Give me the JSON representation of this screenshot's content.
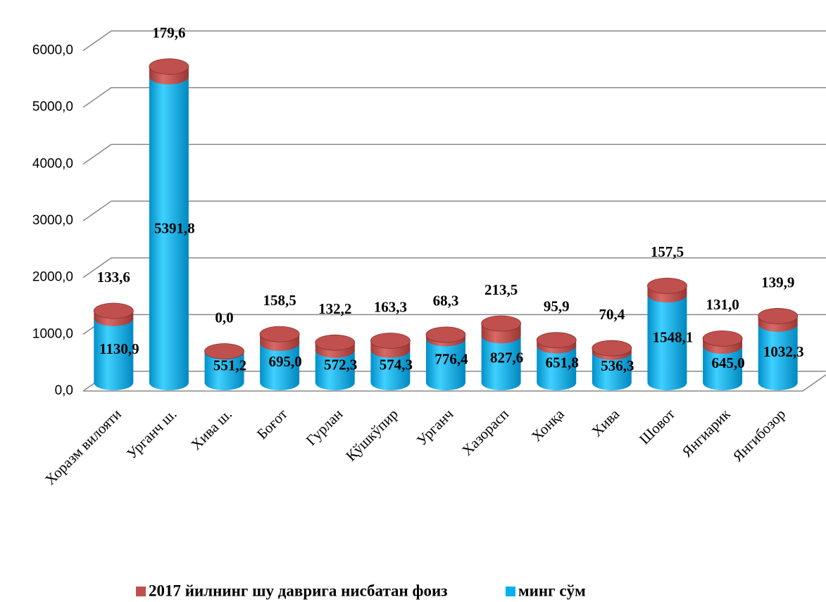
{
  "chart_data": {
    "type": "bar3d_stacked",
    "categories": [
      "Хоразм вилояти",
      "Урганч ш.",
      "Хива ш.",
      "Боғот",
      "Гурлан",
      "Қўшкўпир",
      "Урганч",
      "Хазорасп",
      "Хонқа",
      "Хива",
      "Шовот",
      "Янгиарик",
      "Янгибозор"
    ],
    "series": [
      {
        "name": "минг сўм",
        "color": "#00b0f0",
        "values": [
          1130.9,
          5391.8,
          551.2,
          695.0,
          572.3,
          574.3,
          776.4,
          827.6,
          651.8,
          536.3,
          1548.1,
          645.0,
          1032.3
        ],
        "value_labels": [
          "1130,9",
          "5391,8",
          "551,2",
          "695,0",
          "572,3",
          "574,3",
          "776,4",
          "827,6",
          "651,8",
          "536,3",
          "1548,1",
          "645,0",
          "1032,3"
        ]
      },
      {
        "name": "2017 йилнинг шу даврига нисбатан фоиз",
        "color": "#c0504d",
        "values": [
          133.6,
          179.6,
          0.0,
          158.5,
          132.2,
          163.3,
          68.3,
          213.5,
          95.9,
          70.4,
          157.5,
          131.0,
          139.9
        ],
        "value_labels": [
          "133,6",
          "179,6",
          "0,0",
          "158,5",
          "132,2",
          "163,3",
          "68,3",
          "213,5",
          "95,9",
          "70,4",
          "157,5",
          "131,0",
          "139,9"
        ]
      }
    ],
    "ylim": [
      0,
      6000
    ],
    "yticks": [
      {
        "value": 0,
        "label": "0,0"
      },
      {
        "value": 1000,
        "label": "1000,0"
      },
      {
        "value": 2000,
        "label": "2000,0"
      },
      {
        "value": 3000,
        "label": "3000,0"
      },
      {
        "value": 4000,
        "label": "4000,0"
      },
      {
        "value": 5000,
        "label": "5000,0"
      },
      {
        "value": 6000,
        "label": "6000,0"
      }
    ],
    "grid": true,
    "legend": "bottom"
  }
}
